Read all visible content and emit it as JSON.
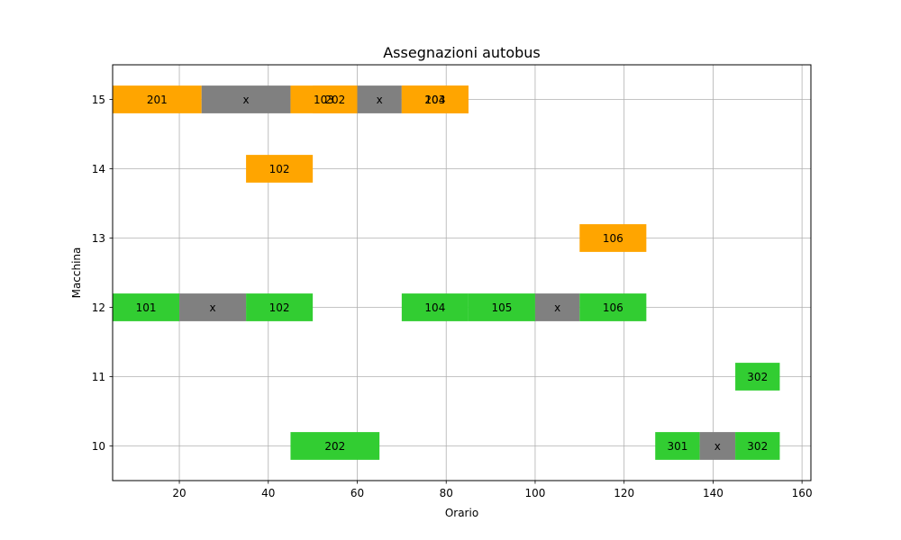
{
  "chart_data": {
    "type": "gantt",
    "title": "Assegnazioni autobus",
    "xlabel": "Orario",
    "ylabel": "Macchina",
    "xlim": [
      5,
      162
    ],
    "ylim": [
      9.5,
      15.5
    ],
    "xticks": [
      20,
      40,
      60,
      80,
      100,
      120,
      140,
      160
    ],
    "yticks": [
      10,
      11,
      12,
      13,
      14,
      15
    ],
    "grid": true,
    "colors": {
      "a": "#ffa500",
      "b": "#32cd32",
      "gap": "#808080"
    },
    "tasks": [
      {
        "machine": 15,
        "start": 5,
        "end": 25,
        "label": "201",
        "color": "#ffa500"
      },
      {
        "machine": 15,
        "start": 25,
        "end": 45,
        "label": "x",
        "color": "#808080"
      },
      {
        "machine": 15,
        "start": 45,
        "end": 60,
        "label": "103",
        "color": "#ffa500"
      },
      {
        "machine": 15,
        "start": 50,
        "end": 60,
        "label": "202",
        "color": "#ffa500"
      },
      {
        "machine": 15,
        "start": 60,
        "end": 70,
        "label": "x",
        "color": "#808080"
      },
      {
        "machine": 15,
        "start": 70,
        "end": 85,
        "label": "104",
        "color": "#ffa500"
      },
      {
        "machine": 15,
        "start": 70,
        "end": 85,
        "label": "203",
        "color": "#ffa500"
      },
      {
        "machine": 14,
        "start": 35,
        "end": 50,
        "label": "102",
        "color": "#ffa500"
      },
      {
        "machine": 13,
        "start": 110,
        "end": 125,
        "label": "106",
        "color": "#ffa500"
      },
      {
        "machine": 12,
        "start": 5,
        "end": 20,
        "label": "101",
        "color": "#32cd32"
      },
      {
        "machine": 12,
        "start": 20,
        "end": 35,
        "label": "x",
        "color": "#808080"
      },
      {
        "machine": 12,
        "start": 35,
        "end": 50,
        "label": "102",
        "color": "#32cd32"
      },
      {
        "machine": 12,
        "start": 70,
        "end": 85,
        "label": "104",
        "color": "#32cd32"
      },
      {
        "machine": 12,
        "start": 85,
        "end": 100,
        "label": "105",
        "color": "#32cd32"
      },
      {
        "machine": 12,
        "start": 100,
        "end": 110,
        "label": "x",
        "color": "#808080"
      },
      {
        "machine": 12,
        "start": 110,
        "end": 125,
        "label": "106",
        "color": "#32cd32"
      },
      {
        "machine": 11,
        "start": 145,
        "end": 155,
        "label": "302",
        "color": "#32cd32"
      },
      {
        "machine": 10,
        "start": 45,
        "end": 65,
        "label": "202",
        "color": "#32cd32"
      },
      {
        "machine": 10,
        "start": 127,
        "end": 137,
        "label": "301",
        "color": "#32cd32"
      },
      {
        "machine": 10,
        "start": 137,
        "end": 145,
        "label": "x",
        "color": "#808080"
      },
      {
        "machine": 10,
        "start": 145,
        "end": 155,
        "label": "302",
        "color": "#32cd32"
      }
    ]
  }
}
